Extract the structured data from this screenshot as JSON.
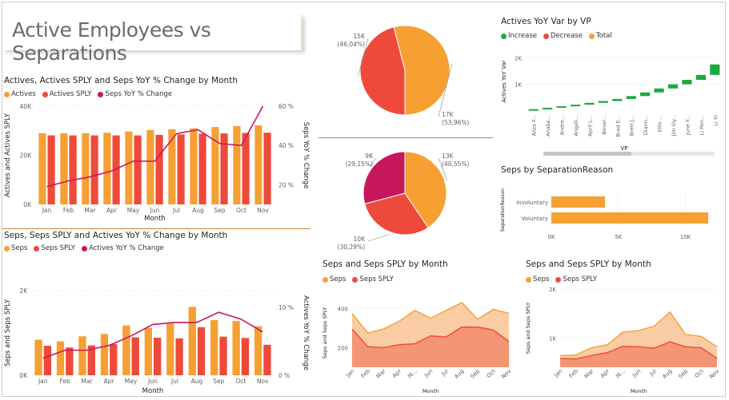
{
  "page_title": "Active Employees vs Separations",
  "colors": {
    "orange": "#F6A033",
    "red": "#EE4A3B",
    "magenta": "#C8185C",
    "green": "#1AAB40",
    "area_light": "#F9C79A",
    "area_dark": "#F28B6B",
    "sep_line": "#C8873A"
  },
  "chart_data": [
    {
      "type": "bar",
      "title": "Actives, Actives SPLY and Seps YoY % Change by Month",
      "legend": [
        "Actives",
        "Actives SPLY",
        "Seps YoY % Change"
      ],
      "xlabel": "Month",
      "ylabel": "Actives and Actives SPLY",
      "y2label": "Seps YoY % Change",
      "categories": [
        "Jan",
        "Feb",
        "Mar",
        "Apr",
        "May",
        "Jun",
        "Jul",
        "Aug",
        "Sep",
        "Oct",
        "Nov"
      ],
      "ylim": [
        0,
        40000
      ],
      "y_ticks": [
        "0K",
        "20K",
        "40K"
      ],
      "y2lim": [
        10,
        60
      ],
      "y2_ticks": [
        "20 %",
        "40 %",
        "60 %"
      ],
      "series": [
        {
          "name": "Actives",
          "type": "bar",
          "values": [
            29000,
            29000,
            29000,
            29200,
            29700,
            30300,
            30600,
            31000,
            31500,
            31900,
            32200
          ]
        },
        {
          "name": "Actives SPLY",
          "type": "bar",
          "values": [
            28100,
            28100,
            28100,
            28100,
            28100,
            28300,
            28500,
            28800,
            28900,
            29100,
            29200
          ]
        },
        {
          "name": "Seps YoY % Change",
          "type": "line",
          "values": [
            19,
            22,
            24,
            27,
            32,
            32,
            46,
            48,
            41,
            40,
            60
          ]
        }
      ]
    },
    {
      "type": "bar",
      "title": "Seps, Seps SPLY and Actives YoY % Change by Month",
      "legend": [
        "Seps",
        "Seps SPLY",
        "Actives YoY % Change"
      ],
      "xlabel": "Month",
      "ylabel": "Seps and Seps SPLY",
      "y2label": "Actives YoY % Change",
      "categories": [
        "Jan",
        "Feb",
        "Mar",
        "Apr",
        "May",
        "Jun",
        "Jul",
        "Aug",
        "Sep",
        "Oct",
        "Nov"
      ],
      "ylim": [
        0,
        2500
      ],
      "y_ticks": [
        "0K",
        "2K"
      ],
      "y2lim": [
        0,
        12.5
      ],
      "y2_ticks": [
        "0 %",
        "10 %"
      ],
      "series": [
        {
          "name": "Seps",
          "type": "bar",
          "values": [
            1050,
            1000,
            1150,
            1220,
            1470,
            1400,
            1550,
            2020,
            1630,
            1600,
            1450
          ]
        },
        {
          "name": "Seps SPLY",
          "type": "bar",
          "values": [
            870,
            820,
            880,
            920,
            1120,
            1110,
            1090,
            1420,
            1140,
            1100,
            900
          ]
        },
        {
          "name": "Actives YoY % Change",
          "type": "line",
          "values": [
            2.5,
            3.7,
            3.7,
            4.4,
            5.8,
            7.5,
            7.8,
            7.8,
            9.3,
            8.3,
            6.4
          ]
        }
      ]
    },
    {
      "type": "pie",
      "slices": [
        {
          "label": "15K",
          "pct": "(46,04%)",
          "value": 46.04,
          "color": "#EE4A3B"
        },
        {
          "label": "17K",
          "pct": "(53,96%)",
          "value": 53.96,
          "color": "#F6A033"
        }
      ]
    },
    {
      "type": "pie",
      "slices": [
        {
          "label": "13K",
          "pct": "(40,55%)",
          "value": 40.55,
          "color": "#F6A033"
        },
        {
          "label": "10K",
          "pct": "(30,29%)",
          "value": 30.29,
          "color": "#EE4A3B"
        },
        {
          "label": "9K",
          "pct": "(29,15%)",
          "value": 29.15,
          "color": "#C8185C"
        }
      ]
    },
    {
      "type": "bar",
      "subtype": "waterfall",
      "title": "Actives YoY Var by VP",
      "legend": [
        "Increase",
        "Decrease",
        "Total"
      ],
      "legend_colors": [
        "#1AAB40",
        "#EE4A3B",
        "#F6A033"
      ],
      "xlabel": "VP",
      "ylabel": "Actives YoY Var",
      "ylim": [
        0,
        2200
      ],
      "y_ticks": [
        "1K",
        "2K"
      ],
      "categories": [
        "Aliza F...",
        "Anabe...",
        "Andre...",
        "Angeli...",
        "April L...",
        "Bever...",
        "Brad E...",
        "Brett J...",
        "Diann...",
        "Ellis ...",
        "Jim Oy...",
        "June F...",
        "Li Pen...",
        "Li Xi"
      ],
      "start_values": [
        0,
        40,
        90,
        150,
        210,
        280,
        350,
        430,
        540,
        680,
        830,
        990,
        1160,
        1350
      ],
      "end_values": [
        40,
        90,
        150,
        210,
        280,
        350,
        430,
        540,
        680,
        830,
        990,
        1160,
        1350,
        1750
      ]
    },
    {
      "type": "bar",
      "orientation": "horizontal",
      "title": "Seps by SeparationReason",
      "ylabel": "SeparationReason",
      "categories": [
        "Involuntary",
        "Voluntary"
      ],
      "values": [
        4000,
        11700
      ],
      "xlim": [
        0,
        12000
      ],
      "x_ticks": [
        "0K",
        "5K",
        "10K"
      ]
    },
    {
      "type": "area",
      "title": "Seps and Seps SPLY by Month",
      "legend": [
        "Seps",
        "Seps SPLY"
      ],
      "xlabel": "Month",
      "ylabel": "Seps and Seps SPLY",
      "categories": [
        "Jan",
        "Feb",
        "Mar",
        "Apr",
        "M...",
        "Jun",
        "Jul",
        "Aug",
        "Sep",
        "Oct",
        "Nov"
      ],
      "ylim": [
        100,
        450
      ],
      "y_ticks": [
        "200",
        "400"
      ],
      "series": [
        {
          "name": "Seps",
          "values": [
            375,
            275,
            295,
            335,
            390,
            350,
            390,
            430,
            345,
            395,
            375
          ]
        },
        {
          "name": "Seps SPLY",
          "values": [
            295,
            205,
            200,
            215,
            220,
            260,
            255,
            305,
            305,
            290,
            230
          ]
        }
      ]
    },
    {
      "type": "area",
      "title": "Seps and Seps SPLY by Month",
      "legend": [
        "Seps",
        "Seps SPLY"
      ],
      "xlabel": "Month",
      "ylabel": "Seps and Seps SPLY",
      "categories": [
        "Jan",
        "Feb",
        "Mar",
        "Apr",
        "M...",
        "Jun",
        "Jul",
        "Aug",
        "Sep",
        "Oct",
        "Nov"
      ],
      "ylim": [
        400,
        2000
      ],
      "y_ticks": [
        "1K",
        "2K"
      ],
      "series": [
        {
          "name": "Seps",
          "values": [
            640,
            650,
            800,
            860,
            1120,
            1150,
            1240,
            1530,
            1070,
            1030,
            820
          ]
        },
        {
          "name": "Seps SPLY",
          "values": [
            580,
            570,
            640,
            700,
            830,
            820,
            790,
            920,
            820,
            800,
            580
          ]
        }
      ]
    }
  ]
}
